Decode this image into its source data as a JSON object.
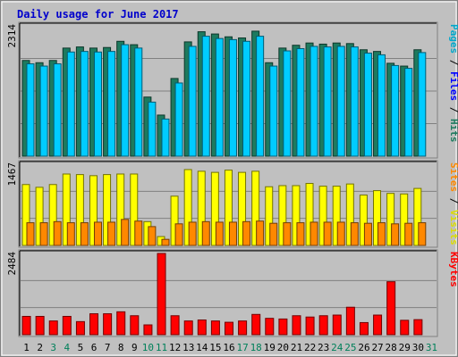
{
  "chart_data": {
    "type": "bar",
    "title": "Daily usage for June 2017",
    "days": [
      "1",
      "2",
      "3",
      "4",
      "5",
      "6",
      "7",
      "8",
      "9",
      "10",
      "11",
      "12",
      "13",
      "14",
      "15",
      "16",
      "17",
      "18",
      "19",
      "20",
      "21",
      "22",
      "23",
      "24",
      "25",
      "26",
      "27",
      "28",
      "29",
      "30",
      "31"
    ],
    "weekend_days": [
      "3",
      "4",
      "10",
      "11",
      "17",
      "18",
      "24",
      "25",
      "31"
    ],
    "panels": [
      {
        "id": "hits-files-pages",
        "max_label": "2314",
        "ymax": 2314,
        "legend": [
          {
            "label": "Pages",
            "color": "#00a8cc"
          },
          {
            "label": "Files",
            "color": "#0000ff"
          },
          {
            "label": "Hits",
            "color": "#1e7a5e"
          }
        ],
        "series": [
          {
            "name": "Hits",
            "color": "#1e7a5e",
            "values": [
              1700,
              1660,
              1700,
              1920,
              1940,
              1920,
              1930,
              2040,
              1980,
              1050,
              730,
              1380,
              2030,
              2210,
              2170,
              2120,
              2100,
              2220,
              1660,
              1920,
              1970,
              2010,
              1990,
              2010,
              2000,
              1890,
              1860,
              1650,
              1600,
              1890
            ]
          },
          {
            "name": "Files",
            "color": "#00ccff",
            "values": [
              1640,
              1600,
              1640,
              1850,
              1860,
              1850,
              1860,
              1980,
              1920,
              960,
              660,
              1300,
              1950,
              2130,
              2090,
              2070,
              2040,
              2130,
              1600,
              1870,
              1910,
              1950,
              1940,
              1950,
              1940,
              1830,
              1800,
              1610,
              1560,
              1840
            ]
          }
        ]
      },
      {
        "id": "visits-sites",
        "max_label": "1467",
        "ymax": 1467,
        "legend": [
          {
            "label": "Sites",
            "color": "#ff8800"
          },
          {
            "label": "Visits",
            "color": "#dddd00"
          }
        ],
        "series": [
          {
            "name": "Visits",
            "color": "#ffff00",
            "values": [
              1100,
              1050,
              1100,
              1290,
              1280,
              1260,
              1280,
              1290,
              1290,
              430,
              160,
              890,
              1370,
              1340,
              1320,
              1360,
              1320,
              1340,
              1060,
              1080,
              1080,
              1120,
              1070,
              1070,
              1110,
              910,
              990,
              940,
              930,
              1030
            ]
          },
          {
            "name": "Sites",
            "color": "#ff8800",
            "values": [
              410,
              410,
              430,
              410,
              410,
              420,
              420,
              470,
              440,
              340,
              110,
              390,
              420,
              430,
              420,
              420,
              430,
              440,
              400,
              410,
              410,
              420,
              420,
              420,
              410,
              400,
              410,
              390,
              400,
              410
            ]
          }
        ]
      },
      {
        "id": "kbytes",
        "max_label": "2484",
        "ymax": 2484,
        "legend": [
          {
            "label": "KBytes",
            "color": "#ff0000"
          }
        ],
        "series": [
          {
            "name": "KBytes",
            "color": "#ff0000",
            "values": [
              560,
              560,
              420,
              560,
              400,
              640,
              640,
              700,
              580,
              300,
              2484,
              580,
              420,
              450,
              420,
              380,
              420,
              620,
              500,
              480,
              580,
              540,
              580,
              600,
              840,
              370,
              600,
              1620,
              440,
              460
            ]
          }
        ]
      }
    ]
  }
}
